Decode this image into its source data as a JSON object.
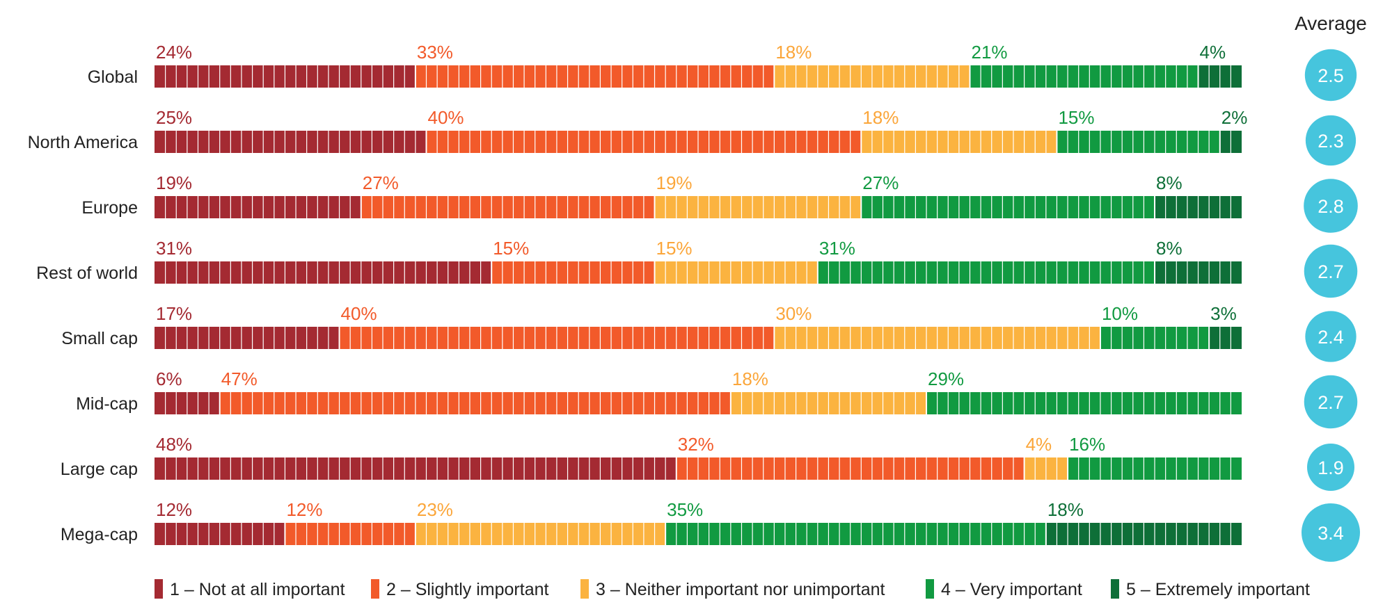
{
  "chart_data": {
    "type": "bar",
    "orientation": "horizontal",
    "stacked": true,
    "normalized": true,
    "average_header": "Average",
    "categories": [
      "Global",
      "North America",
      "Europe",
      "Rest of world",
      "Small cap",
      "Mid-cap",
      "Large cap",
      "Mega-cap"
    ],
    "series": [
      {
        "name": "1 – Not at all important",
        "color": "#A42A32",
        "values": [
          24,
          25,
          19,
          31,
          17,
          6,
          48,
          12
        ]
      },
      {
        "name": "2 – Slightly important",
        "color": "#F25A2A",
        "values": [
          33,
          40,
          27,
          15,
          40,
          47,
          32,
          12
        ]
      },
      {
        "name": "3 – Neither important nor unimportant",
        "color": "#FBB340",
        "values": [
          18,
          18,
          19,
          15,
          30,
          18,
          4,
          23
        ]
      },
      {
        "name": "4 – Very important",
        "color": "#119A41",
        "values": [
          21,
          15,
          27,
          31,
          10,
          29,
          16,
          35
        ]
      },
      {
        "name": "5 – Extremely important",
        "color": "#0E6F38",
        "values": [
          4,
          2,
          8,
          8,
          3,
          0,
          0,
          18
        ]
      }
    ],
    "label_colors": [
      "#A42A32",
      "#F25A2A",
      "#FBA63A",
      "#119A41",
      "#0E6F38"
    ],
    "averages": [
      2.5,
      2.3,
      2.8,
      2.7,
      2.4,
      2.7,
      1.9,
      3.4
    ],
    "average_circle_color": "#46C5DD",
    "legend_position": "bottom"
  }
}
